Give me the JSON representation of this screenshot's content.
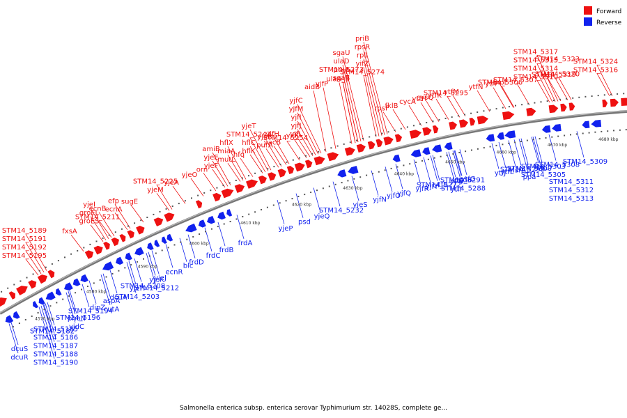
{
  "title": "Salmonella enterica subsp. enterica serovar Typhimurium str. 14028S, complete ge...",
  "legend": {
    "forward_label": "Forward",
    "reverse_label": "Reverse",
    "forward_color": "#ee1111",
    "reverse_color": "#1122ee"
  },
  "ticks": [
    "4570 kbp",
    "4580 kbp",
    "4590 kbp",
    "4600 kbp",
    "4610 kbp",
    "4620 kbp",
    "4630 kbp",
    "4640 kbp",
    "4650 kbp",
    "4660 kbp",
    "4670 kbp",
    "4680 kbp"
  ],
  "forward_labels": [
    "STM14_5195",
    "STM14_5192",
    "STM14_5191",
    "STM14_5189",
    "fxsA",
    "groES",
    "groEL",
    "yjeI",
    "STM14_5211",
    "ecnB",
    "ecnA",
    "efp",
    "sugE",
    "yjeM",
    "STM14_5225",
    "yjeA",
    "yjeO",
    "orn",
    "yjeF",
    "yjeE",
    "amiB",
    "mutL",
    "miaA",
    "hflX",
    "hfq",
    "hflK",
    "hflC",
    "STM14_5247",
    "yjeT",
    "purA",
    "yjeB",
    "vacB",
    "yjfH",
    "yjfK",
    "yjfL",
    "yjfJ",
    "yjfI",
    "yjfM",
    "yjfC",
    "STM14_5254",
    "aidB",
    "yjfP",
    "ulaA_3",
    "sgaB",
    "ptxA",
    "ulaD",
    "sgaU",
    "sgaE",
    "STM14_5273",
    "STM14_5274",
    "yifZ",
    "rplI",
    "rpsR",
    "priB",
    "rpsF",
    "fklB",
    "cycA",
    "ytfH",
    "cysQ",
    "ytfK",
    "STM14_5295",
    "ytfM",
    "ytfN",
    "ytfP",
    "mpl",
    "STM14_5306",
    "STM14_5307",
    "STM14_5310",
    "STM14_5314",
    "STM14_5315",
    "STM14_5317",
    "STM14_5319",
    "STM14_5320",
    "srfJ",
    "STM14_5316",
    "STM14_5324",
    "STM14_5323"
  ],
  "reverse_labels": [
    "dcuS",
    "dcuR",
    "STM14_5182",
    "STM14_5185",
    "STM14_5186",
    "STM14_5187",
    "STM14_5188",
    "STM14_5190",
    "STM14_5196",
    "phoN",
    "yjdC",
    "STM14_5194",
    "dipZ",
    "aspA",
    "cutA",
    "dcuA",
    "yjeH",
    "STM14_5203",
    "STM14_5208",
    "yjeJ",
    "yjeK",
    "STM14_5212",
    "ecnR",
    "blc",
    "frdD",
    "frdC",
    "frdB",
    "frdA",
    "yjeP",
    "psd",
    "yjeQ",
    "STM14_5232",
    "yjeS",
    "yjfN",
    "yjfO",
    "yjfQ",
    "yjfR",
    "yjfY",
    "STM14_5272",
    "ytfB",
    "ytfE",
    "ytfF",
    "ytfG",
    "cpdB",
    "STM14_5288",
    "STM14_5291",
    "ytfJ",
    "ytfL",
    "msrA",
    "STM14_5299",
    "STM14_5300",
    "ppa",
    "fbp",
    "STM14_5303",
    "STM14_5305",
    "STM14_5308",
    "STM14_5309",
    "STM14_5311",
    "STM14_5312",
    "STM14_5313"
  ]
}
